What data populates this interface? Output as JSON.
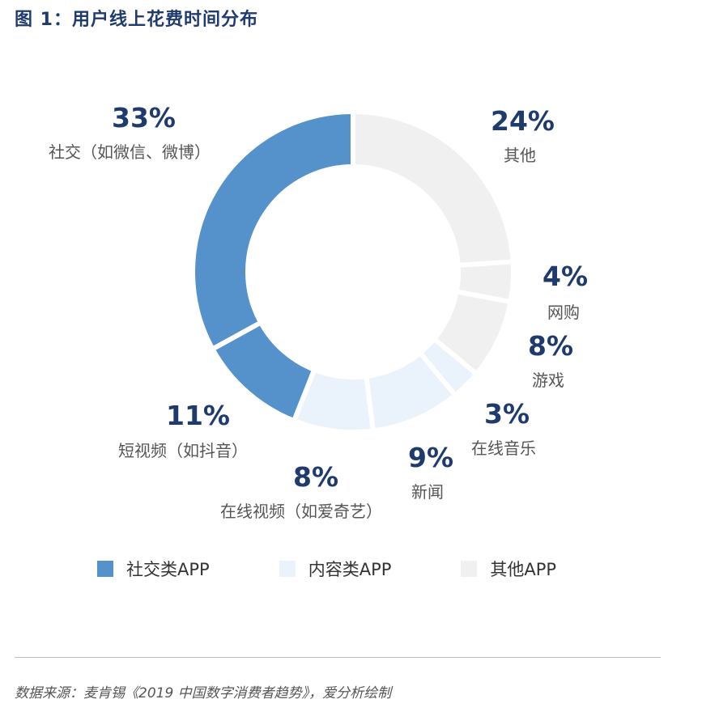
{
  "title": "图 1：用户线上花费时间分布",
  "chart_data": {
    "type": "pie",
    "categories": [
      "其他",
      "网购",
      "游戏",
      "在线音乐",
      "新闻",
      "在线视频（如爱奇艺）",
      "短视频（如抖音）",
      "社交（如微信、微博）"
    ],
    "values": [
      24,
      4,
      8,
      3,
      9,
      8,
      11,
      33
    ],
    "value_labels": [
      "24%",
      "4%",
      "8%",
      "3%",
      "9%",
      "8%",
      "11%",
      "33%"
    ],
    "groups": [
      "其他APP",
      "其他APP",
      "其他APP",
      "内容类APP",
      "内容类APP",
      "内容类APP",
      "社交类APP",
      "社交类APP"
    ],
    "legend": [
      {
        "label": "社交类APP",
        "color": "#5592cc"
      },
      {
        "label": "内容类APP",
        "color": "#eaf3fc"
      },
      {
        "label": "其他APP",
        "color": "#f0f0f0"
      }
    ],
    "legend_position": "bottom"
  },
  "colors": {
    "社交类APP": "#5592cc",
    "内容类APP": "#eaf3fc",
    "其他APP": "#f0f0f0",
    "title": "#1f3b6e"
  },
  "source": "数据来源：麦肯锡《2019 中国数字消费者趋势》，爱分析绘制"
}
